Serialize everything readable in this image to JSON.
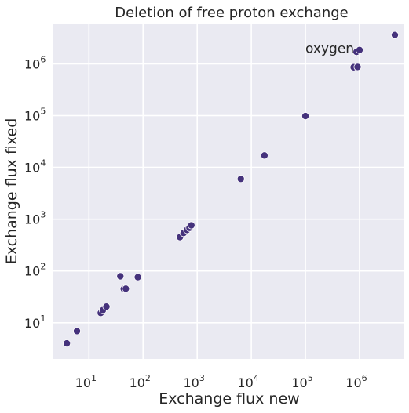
{
  "chart_data": {
    "type": "scatter",
    "title": "Deletion of free proton exchange",
    "xlabel": "Exchange flux new",
    "ylabel": "Exchange flux fixed",
    "xscale": "log",
    "yscale": "log",
    "xlim": [
      2.2,
      6500000
    ],
    "ylim": [
      2.0,
      6000000
    ],
    "grid": true,
    "background": "#eaeaf2",
    "point_color": "#45327c",
    "x_tick_labels": [
      {
        "value": 10,
        "base": "10",
        "exp": "1"
      },
      {
        "value": 100,
        "base": "10",
        "exp": "2"
      },
      {
        "value": 1000,
        "base": "10",
        "exp": "3"
      },
      {
        "value": 10000,
        "base": "10",
        "exp": "4"
      },
      {
        "value": 100000,
        "base": "10",
        "exp": "5"
      },
      {
        "value": 1000000,
        "base": "10",
        "exp": "6"
      }
    ],
    "y_tick_labels": [
      {
        "value": 10,
        "base": "10",
        "exp": "1"
      },
      {
        "value": 100,
        "base": "10",
        "exp": "2"
      },
      {
        "value": 1000,
        "base": "10",
        "exp": "3"
      },
      {
        "value": 10000,
        "base": "10",
        "exp": "4"
      },
      {
        "value": 100000,
        "base": "10",
        "exp": "5"
      },
      {
        "value": 1000000,
        "base": "10",
        "exp": "6"
      }
    ],
    "points": [
      {
        "x": 3.9,
        "y": 4.0
      },
      {
        "x": 6.0,
        "y": 6.9
      },
      {
        "x": 16.5,
        "y": 15.5
      },
      {
        "x": 18.0,
        "y": 17.5
      },
      {
        "x": 21.0,
        "y": 20.5
      },
      {
        "x": 38.0,
        "y": 79.0
      },
      {
        "x": 44.0,
        "y": 45.0
      },
      {
        "x": 48.0,
        "y": 45.5
      },
      {
        "x": 80.0,
        "y": 76.0
      },
      {
        "x": 480.0,
        "y": 450.0
      },
      {
        "x": 560.0,
        "y": 540.0
      },
      {
        "x": 650.0,
        "y": 620.0
      },
      {
        "x": 720.0,
        "y": 680.0
      },
      {
        "x": 780.0,
        "y": 760.0
      },
      {
        "x": 6400.0,
        "y": 6000.0
      },
      {
        "x": 17500.0,
        "y": 17000.0
      },
      {
        "x": 100000.0,
        "y": 98000.0
      },
      {
        "x": 780000.0,
        "y": 860000.0
      },
      {
        "x": 920000.0,
        "y": 870000.0
      },
      {
        "x": 880000.0,
        "y": 1700000.0
      },
      {
        "x": 1000000.0,
        "y": 1850000.0
      },
      {
        "x": 4500000.0,
        "y": 3600000.0
      }
    ],
    "annotations": [
      {
        "text": "oxygen",
        "x": 100000,
        "y": 2000000
      }
    ]
  }
}
